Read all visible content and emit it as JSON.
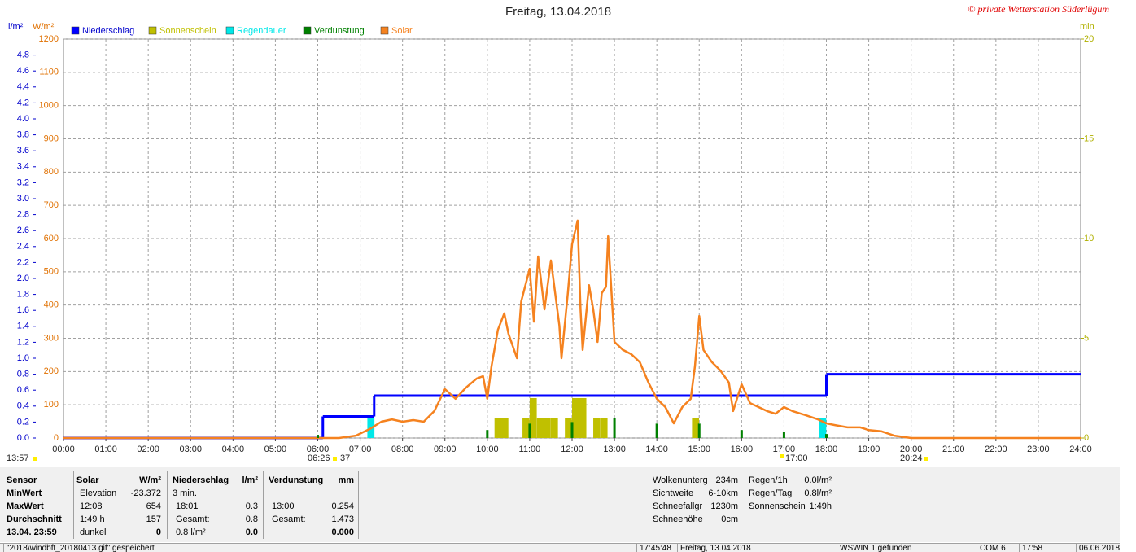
{
  "chart_data": {
    "type": "line",
    "title": "Freitag, 13.04.2018",
    "copyright": "© private Wetterstation Süderlügum",
    "y_unit": "W/m²",
    "y2_unit": "l/m²",
    "y3_unit": "min",
    "xlim": [
      0,
      24
    ],
    "xticks": [
      {
        "value": 0,
        "label": "00:00"
      },
      {
        "value": 1,
        "label": "01:00"
      },
      {
        "value": 2,
        "label": "02:00"
      },
      {
        "value": 3,
        "label": "03:00"
      },
      {
        "value": 4,
        "label": "04:00"
      },
      {
        "value": 5,
        "label": "05:00"
      },
      {
        "value": 6,
        "label": "06:00"
      },
      {
        "value": 7,
        "label": "07:00"
      },
      {
        "value": 8,
        "label": "08:00"
      },
      {
        "value": 9,
        "label": "09:00"
      },
      {
        "value": 10,
        "label": "10:00"
      },
      {
        "value": 11,
        "label": "11:00"
      },
      {
        "value": 12,
        "label": "12:00"
      },
      {
        "value": 13,
        "label": "13:00"
      },
      {
        "value": 14,
        "label": "14:00"
      },
      {
        "value": 15,
        "label": "15:00"
      },
      {
        "value": 16,
        "label": "16:00"
      },
      {
        "value": 17,
        "label": "17:00"
      },
      {
        "value": 18,
        "label": "18:00"
      },
      {
        "value": 19,
        "label": "19:00"
      },
      {
        "value": 20,
        "label": "20:00"
      },
      {
        "value": 21,
        "label": "21:00"
      },
      {
        "value": 22,
        "label": "22:00"
      },
      {
        "value": 23,
        "label": "23:00"
      },
      {
        "value": 24,
        "label": "24:00"
      }
    ],
    "ylim": [
      0,
      1200
    ],
    "yticks": [
      0,
      100,
      200,
      300,
      400,
      500,
      600,
      700,
      800,
      900,
      1000,
      1100,
      1200
    ],
    "y2lim": [
      0,
      5
    ],
    "y2ticks": [
      {
        "value": 0,
        "label": "0.0"
      },
      0.2,
      0.4,
      0.6,
      0.8,
      {
        "value": 1,
        "label": "1.0"
      },
      1.2,
      1.4,
      1.6,
      1.8,
      {
        "value": 2,
        "label": "2.0"
      },
      2.2,
      2.4,
      2.6,
      2.8,
      {
        "value": 3,
        "label": "3.0"
      },
      3.2,
      3.4,
      3.6,
      3.8,
      {
        "value": 4,
        "label": "4.0"
      },
      4.2,
      4.4,
      4.6,
      4.8
    ],
    "y3lim": [
      0,
      20
    ],
    "y3ticks": [
      0,
      5,
      10,
      15,
      20
    ],
    "grid": true,
    "series": [
      {
        "name": "Niederschlag",
        "color": "#0000ff",
        "type": "step",
        "axis": "y2",
        "x": [
          0,
          6.12,
          7.33,
          18,
          24
        ],
        "values": [
          0,
          0.27,
          0.53,
          0.8,
          0.8
        ]
      },
      {
        "name": "Sonnenschein",
        "color": "#c0c000",
        "type": "bar",
        "axis": "y3",
        "x": [
          10.17,
          10.33,
          10.83,
          11,
          11.17,
          11.33,
          11.5,
          11.83,
          12,
          12.17,
          12.5,
          12.67,
          14.83
        ],
        "values": [
          1,
          1,
          1,
          2,
          1,
          1,
          1,
          1,
          2,
          2,
          1,
          1,
          1
        ]
      },
      {
        "name": "Regendauer",
        "color": "#00e8e8",
        "type": "bar",
        "axis": "y3",
        "x": [
          7.17,
          17.83
        ],
        "values": [
          1,
          1
        ]
      },
      {
        "name": "Verdunstung",
        "color": "#008000",
        "type": "spike",
        "axis": "y2",
        "x": [
          6,
          10,
          11,
          12,
          13,
          14,
          15,
          16,
          17,
          18
        ],
        "values": [
          0.04,
          0.1,
          0.18,
          0.2,
          0.254,
          0.18,
          0.18,
          0.1,
          0.08,
          0.05
        ]
      },
      {
        "name": "Solar",
        "color": "#f5821f",
        "type": "line",
        "axis": "y",
        "x": [
          0,
          6,
          6.5,
          6.9,
          7.25,
          7.5,
          7.75,
          8,
          8.25,
          8.5,
          8.75,
          9,
          9.25,
          9.5,
          9.75,
          9.9,
          10,
          10.1,
          10.25,
          10.4,
          10.5,
          10.7,
          10.8,
          11,
          11.1,
          11.2,
          11.35,
          11.5,
          11.7,
          11.75,
          11.9,
          12,
          12.13,
          12.2,
          12.25,
          12.4,
          12.5,
          12.6,
          12.7,
          12.8,
          12.85,
          13,
          13.2,
          13.4,
          13.6,
          13.8,
          14,
          14.2,
          14.4,
          14.6,
          14.8,
          14.9,
          15,
          15.1,
          15.3,
          15.5,
          15.7,
          15.8,
          16,
          16.2,
          16.4,
          16.6,
          16.8,
          17,
          17.2,
          17.5,
          17.8,
          18,
          18.2,
          18.5,
          18.8,
          19,
          19.3,
          19.6,
          20,
          24
        ],
        "values": [
          0,
          0,
          0,
          7,
          29,
          49,
          56,
          49,
          54,
          49,
          81,
          147,
          118,
          152,
          179,
          186,
          118,
          216,
          326,
          375,
          313,
          240,
          411,
          509,
          350,
          546,
          387,
          534,
          338,
          240,
          436,
          583,
          654,
          387,
          265,
          460,
          387,
          289,
          436,
          455,
          607,
          289,
          265,
          252,
          228,
          167,
          118,
          93,
          44,
          93,
          118,
          216,
          367,
          265,
          228,
          203,
          167,
          81,
          162,
          105,
          93,
          81,
          73,
          93,
          81,
          69,
          56,
          44,
          39,
          32,
          32,
          24,
          20,
          7,
          0,
          0
        ]
      }
    ],
    "annotations": [
      "13:57",
      "06:26",
      "37",
      "17:00",
      "20:24"
    ]
  },
  "stats": {
    "row_labels": [
      "Sensor",
      "MinWert",
      "MaxWert",
      "Durchschnitt",
      "13.04. 23:59"
    ],
    "solar": {
      "header": "Solar",
      "unit": "W/m²",
      "rows": [
        [
          "Elevation",
          "-23.372"
        ],
        [
          "12:08",
          "654"
        ],
        [
          "1:49 h",
          "157"
        ],
        [
          "dunkel",
          "0"
        ]
      ]
    },
    "niederschlag": {
      "header": "Niederschlag",
      "unit": "l/m²",
      "rows": [
        [
          "3 min."
        ],
        [
          "18:01",
          "0.3"
        ],
        [
          "Gesamt:",
          "0.8"
        ],
        [
          "0.8 l/m²",
          "0.0"
        ]
      ]
    },
    "verdunstung": {
      "header": "Verdunstung",
      "unit": "mm",
      "rows": [
        [
          "13:00",
          "0.254"
        ],
        [
          "Gesamt:",
          "1.473"
        ],
        [
          "0.000"
        ]
      ]
    }
  },
  "info": [
    [
      "Wolkenunterg",
      "234m"
    ],
    [
      "Sichtweite",
      "6-10km"
    ],
    [
      "Schneefallgr",
      "1230m"
    ],
    [
      "Schneehöhe",
      "0cm"
    ]
  ],
  "info2": [
    [
      "Regen/1h",
      "0.0l/m²"
    ],
    [
      "Regen/Tag",
      "0.8l/m²"
    ],
    [
      "Sonnenschein",
      "1:49h"
    ]
  ],
  "status": [
    "\"2018\\windbft_20180413.gif\" gespeichert",
    "17:45:48",
    "Freitag, 13.04.2018",
    "WSWIN 1 gefunden",
    "COM 6",
    "17:58",
    "06.06.2018"
  ]
}
